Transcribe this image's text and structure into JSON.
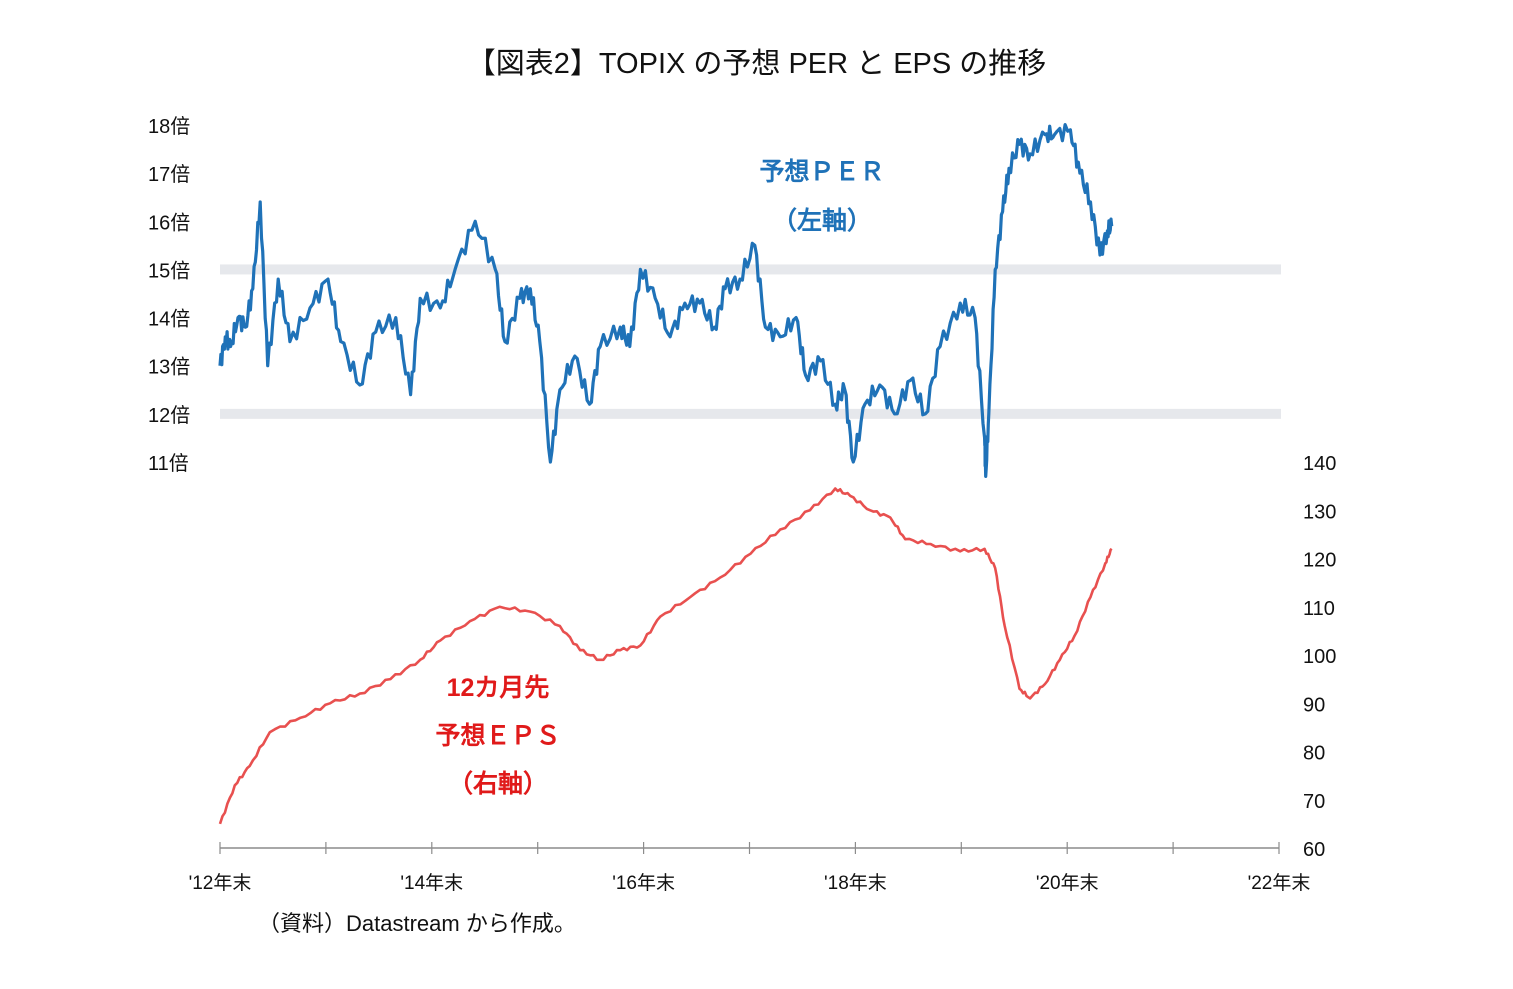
{
  "chart_data": {
    "type": "line",
    "title": "【図表2】TOPIX の予想 PER と EPS の推移",
    "source_note": "（資料）Datastream から作成。",
    "x_axis": {
      "range_years_after_end2012": [
        0,
        10
      ],
      "tick_labels": [
        "'12年末",
        "'14年末",
        "'16年末",
        "'18年末",
        "'20年末",
        "'22年末"
      ],
      "tick_positions_years": [
        0,
        2,
        4,
        6,
        8,
        10
      ],
      "minor_ticks_every_years": 1
    },
    "y_left": {
      "label": "予想PER（倍）",
      "range": [
        11,
        18
      ],
      "tick_labels": [
        "18倍",
        "17倍",
        "16倍",
        "15倍",
        "14倍",
        "13倍",
        "12倍",
        "11倍"
      ],
      "tick_values": [
        18,
        17,
        16,
        15,
        14,
        13,
        12,
        11
      ],
      "reference_bands": [
        15,
        12
      ]
    },
    "y_right": {
      "label": "12カ月先予想EPS",
      "range": [
        60,
        140
      ],
      "tick_labels": [
        "140",
        "130",
        "120",
        "110",
        "100",
        "90",
        "80",
        "70",
        "60"
      ],
      "tick_values": [
        140,
        130,
        120,
        110,
        100,
        90,
        80,
        70,
        60
      ]
    },
    "annotations": {
      "per": [
        "予想ＰＥＲ",
        "（左軸）"
      ],
      "eps": [
        "12カ月先",
        "予想ＥＰＳ",
        "（右軸）"
      ]
    },
    "colors": {
      "per": "#1F72B8",
      "eps": "#E8504F",
      "band": "#E6E8EC",
      "axis": "#8C8C8C",
      "per_label": "#1F72B8",
      "eps_label": "#E01A1A"
    },
    "series": [
      {
        "name": "予想PER",
        "axis": "left",
        "x": [
          0.0,
          0.05,
          0.1,
          0.17,
          0.24,
          0.31,
          0.38,
          0.45,
          0.55,
          0.66,
          0.85,
          1.02,
          1.14,
          1.32,
          1.47,
          1.66,
          1.8,
          1.89,
          2.08,
          2.22,
          2.41,
          2.6,
          2.69,
          2.83,
          2.93,
          3.02,
          3.12,
          3.21,
          3.35,
          3.49,
          3.59,
          3.78,
          3.87,
          3.97,
          4.11,
          4.25,
          4.39,
          4.53,
          4.67,
          4.77,
          4.91,
          5.05,
          5.15,
          5.29,
          5.44,
          5.53,
          5.67,
          5.81,
          5.9,
          5.98,
          6.09,
          6.23,
          6.37,
          6.52,
          6.66,
          6.8,
          6.99,
          7.13,
          7.22,
          7.23,
          7.26,
          7.32,
          7.39,
          7.45,
          7.55,
          7.65,
          7.79,
          7.88,
          8.03,
          8.12,
          8.22,
          8.31,
          8.38,
          8.42
        ],
        "values": [
          13.0,
          13.6,
          13.4,
          14.0,
          13.8,
          14.6,
          16.4,
          13.0,
          14.8,
          13.5,
          14.2,
          14.8,
          13.5,
          12.6,
          13.7,
          14.0,
          12.4,
          14.4,
          14.2,
          15.0,
          16.0,
          15.0,
          13.5,
          14.4,
          14.6,
          13.5,
          11.0,
          12.5,
          13.2,
          12.2,
          13.4,
          13.8,
          13.4,
          15.0,
          14.4,
          13.6,
          14.3,
          14.3,
          13.8,
          14.6,
          14.8,
          15.5,
          13.8,
          13.6,
          14.0,
          12.8,
          13.1,
          12.2,
          12.5,
          11.0,
          12.2,
          12.6,
          12.0,
          12.7,
          12.0,
          13.4,
          14.3,
          14.0,
          11.5,
          10.7,
          12.0,
          15.0,
          16.2,
          17.1,
          17.6,
          17.4,
          17.8,
          17.8,
          17.9,
          17.0,
          16.4,
          15.3,
          15.8,
          15.9
        ]
      },
      {
        "name": "12カ月先予想EPS",
        "axis": "right",
        "x": [
          0.0,
          0.14,
          0.28,
          0.47,
          0.76,
          1.04,
          1.32,
          1.61,
          1.89,
          2.08,
          2.36,
          2.64,
          2.93,
          3.21,
          3.4,
          3.59,
          3.78,
          3.97,
          4.16,
          4.44,
          4.72,
          5.01,
          5.29,
          5.57,
          5.81,
          5.95,
          6.14,
          6.33,
          6.47,
          6.71,
          6.99,
          7.22,
          7.32,
          7.41,
          7.55,
          7.65,
          7.79,
          7.93,
          8.07,
          8.22,
          8.36,
          8.42
        ],
        "values": [
          65,
          73,
          77,
          84,
          87,
          90,
          92,
          95,
          99,
          103,
          107,
          110,
          109,
          106,
          101,
          99,
          101,
          102,
          108,
          112,
          116,
          121,
          126,
          130,
          134.5,
          133,
          130,
          128.5,
          124,
          123,
          121.5,
          122,
          118,
          106,
          93,
          91,
          94,
          99,
          104,
          112,
          119,
          122
        ]
      }
    ]
  }
}
